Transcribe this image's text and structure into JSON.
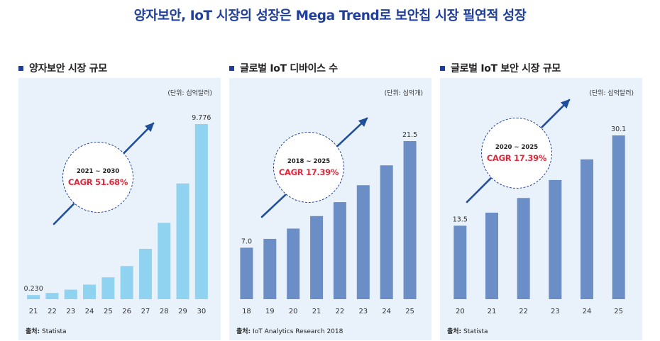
{
  "page": {
    "title": "양자보안, IoT 시장의 성장은 Mega Trend로 보안칩 시장 필연적 성장"
  },
  "colors": {
    "bar_light": "#8fd3f1",
    "bar_dark": "#6b8ec6",
    "arrow": "#1f4e9a",
    "cagr": "#e0283c",
    "panel_bg": "#e9f1fa"
  },
  "panels": [
    {
      "heading": "양자보안 시장 규모",
      "unit": "(단위: 십억달러)",
      "source_label": "출처:",
      "source_text": "Statista",
      "cagr_period": "2021 ~ 2030",
      "cagr_value": "CAGR 51.68%"
    },
    {
      "heading": "글로벌 IoT 디바이스 수",
      "unit": "(단위: 십억개)",
      "source_label": "출처:",
      "source_text": "IoT Analytics Research 2018",
      "cagr_period": "2018 ~ 2025",
      "cagr_value": "CAGR 17.39%"
    },
    {
      "heading": "글로벌 IoT 보안 시장 규모",
      "unit": "(단위: 십억달러)",
      "source_label": "출처:",
      "source_text": "Statista",
      "cagr_period": "2020 ~ 2025",
      "cagr_value": "CAGR 17.39%"
    }
  ],
  "chart_data": [
    {
      "type": "bar",
      "title": "양자보안 시장 규모",
      "categories": [
        "21",
        "22",
        "23",
        "24",
        "25",
        "26",
        "27",
        "28",
        "29",
        "30"
      ],
      "values": [
        0.23,
        0.35,
        0.53,
        0.81,
        1.22,
        1.85,
        2.81,
        4.26,
        6.46,
        9.776
      ],
      "data_labels": {
        "first": "0.230",
        "last": "9.776"
      },
      "color": "#8fd3f1",
      "ylim": [
        0,
        12.36
      ]
    },
    {
      "type": "bar",
      "title": "글로벌 IoT 디바이스 수",
      "categories": [
        "18",
        "19",
        "20",
        "21",
        "22",
        "23",
        "24",
        "25"
      ],
      "values": [
        7.0,
        8.2,
        9.6,
        11.3,
        13.2,
        15.5,
        18.2,
        21.5
      ],
      "data_labels": {
        "first": "7.0",
        "last": "21.5"
      },
      "color": "#6b8ec6",
      "ylim": [
        0,
        27.2
      ]
    },
    {
      "type": "bar",
      "title": "글로벌 IoT 보안 시장 규모",
      "categories": [
        "20",
        "21",
        "22",
        "23",
        "24",
        "25"
      ],
      "values": [
        13.5,
        15.9,
        18.6,
        21.9,
        25.7,
        30.1
      ],
      "data_labels": {
        "first": "13.5",
        "last": "30.1"
      },
      "color": "#6b8ec6",
      "ylim": [
        0,
        38.0
      ]
    }
  ]
}
